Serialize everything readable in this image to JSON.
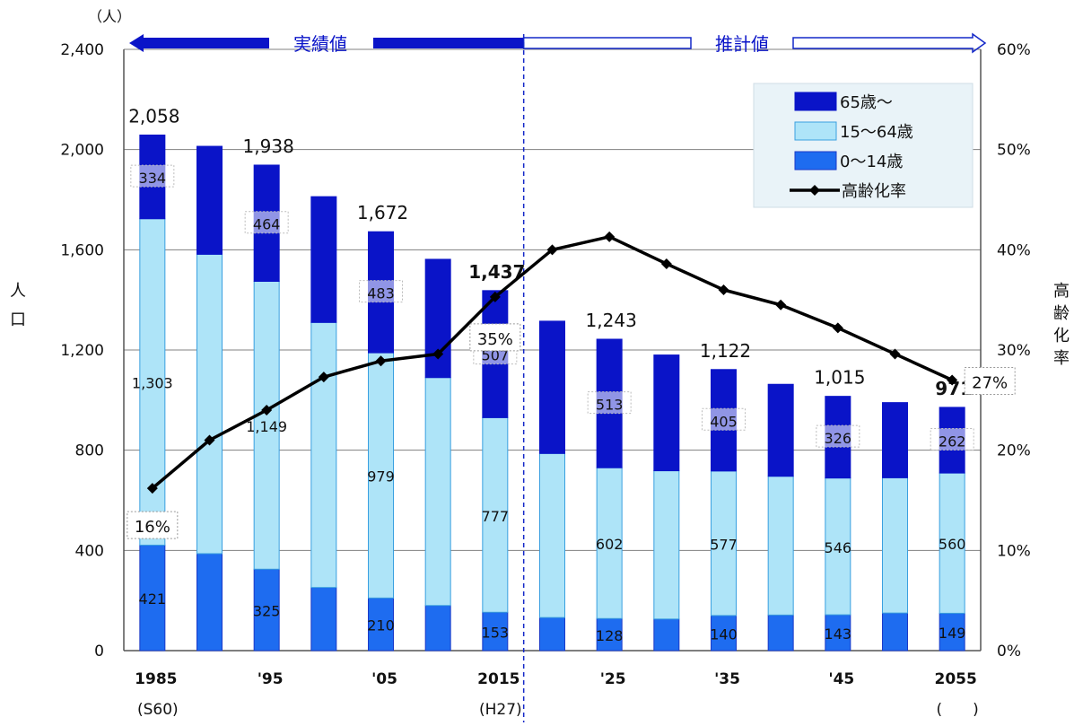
{
  "chart_data": {
    "type": "bar",
    "stacked": true,
    "unit_left": "（人）",
    "ylabel_left": "人口",
    "ylabel_right": "高齢化率",
    "ylim_left": [
      0,
      2400
    ],
    "ylim_right": [
      0,
      60
    ],
    "yticks_left": [
      "0",
      "400",
      "800",
      "1,200",
      "1,600",
      "2,000",
      "2,400"
    ],
    "yticks_right": [
      "0%",
      "10%",
      "20%",
      "30%",
      "40%",
      "50%",
      "60%"
    ],
    "grid": true,
    "legend_position": "top-right",
    "period_actual_label": "実績値",
    "period_projection_label": "推計値",
    "x_tick_labels": [
      "1985",
      "",
      "'95",
      "",
      "'05",
      "",
      "2015",
      "",
      "'25",
      "",
      "'35",
      "",
      "'45",
      "",
      "2055"
    ],
    "x_sub_labels": [
      "(S60)",
      "",
      "",
      "",
      "",
      "",
      "(H27)",
      "",
      "",
      "",
      "",
      "",
      "",
      "",
      "(　　)"
    ],
    "colors": {
      "age65": "#0a14c8",
      "age15_64": "#aee4f8",
      "age0_14": "#1e6cf0",
      "ratio_line": "#000000",
      "grid": "#808080",
      "divider": "#1428c8",
      "legend_bg": "#e9f3f8"
    },
    "series": [
      {
        "name": "65歳～",
        "values": [
          334,
          431,
          464,
          502,
          483,
          472,
          507,
          528,
          513,
          462,
          405,
          367,
          326,
          300,
          262
        ]
      },
      {
        "name": "15～64歳",
        "values": [
          1303,
          1195,
          1149,
          1058,
          979,
          910,
          777,
          655,
          602,
          592,
          577,
          554,
          546,
          540,
          560
        ]
      },
      {
        "name": "0～14歳",
        "values": [
          421,
          387,
          325,
          252,
          210,
          180,
          153,
          132,
          128,
          126,
          140,
          142,
          143,
          150,
          149
        ]
      }
    ],
    "totals": [
      2058,
      2013,
      1938,
      1812,
      1672,
      1562,
      1437,
      1315,
      1243,
      1180,
      1122,
      1063,
      1015,
      990,
      971
    ],
    "line_series": {
      "name": "高齢化率",
      "values": [
        16.2,
        21.0,
        24.0,
        27.3,
        28.9,
        29.6,
        35.3,
        40.0,
        41.3,
        38.6,
        36.0,
        34.5,
        32.2,
        29.6,
        27.0
      ]
    },
    "bar_labels": [
      {
        "index": 0,
        "series": 0,
        "text": "334"
      },
      {
        "index": 2,
        "series": 0,
        "text": "464"
      },
      {
        "index": 4,
        "series": 0,
        "text": "483"
      },
      {
        "index": 6,
        "series": 0,
        "text": "507"
      },
      {
        "index": 8,
        "series": 0,
        "text": "513"
      },
      {
        "index": 10,
        "series": 0,
        "text": "405"
      },
      {
        "index": 12,
        "series": 0,
        "text": "326"
      },
      {
        "index": 14,
        "series": 0,
        "text": "262"
      },
      {
        "index": 0,
        "series": 1,
        "text": "1,303"
      },
      {
        "index": 2,
        "series": 1,
        "text": "1,149"
      },
      {
        "index": 4,
        "series": 1,
        "text": "979"
      },
      {
        "index": 6,
        "series": 1,
        "text": "777"
      },
      {
        "index": 8,
        "series": 1,
        "text": "602"
      },
      {
        "index": 10,
        "series": 1,
        "text": "577"
      },
      {
        "index": 12,
        "series": 1,
        "text": "546"
      },
      {
        "index": 14,
        "series": 1,
        "text": "560"
      },
      {
        "index": 0,
        "series": 2,
        "text": "421"
      },
      {
        "index": 2,
        "series": 2,
        "text": "325"
      },
      {
        "index": 4,
        "series": 2,
        "text": "210"
      },
      {
        "index": 6,
        "series": 2,
        "text": "153"
      },
      {
        "index": 8,
        "series": 2,
        "text": "128"
      },
      {
        "index": 10,
        "series": 2,
        "text": "140"
      },
      {
        "index": 12,
        "series": 2,
        "text": "143"
      },
      {
        "index": 14,
        "series": 2,
        "text": "149"
      }
    ],
    "total_labels": [
      {
        "index": 0,
        "text": "2,058",
        "bold": false
      },
      {
        "index": 2,
        "text": "1,938",
        "bold": false
      },
      {
        "index": 4,
        "text": "1,672",
        "bold": false
      },
      {
        "index": 6,
        "text": "1,437",
        "bold": true
      },
      {
        "index": 8,
        "text": "1,243",
        "bold": false
      },
      {
        "index": 10,
        "text": "1,122",
        "bold": false
      },
      {
        "index": 12,
        "text": "1,015",
        "bold": false
      },
      {
        "index": 14,
        "text": "971",
        "bold": true
      }
    ],
    "ratio_labels": [
      {
        "index": 0,
        "text": "16%"
      },
      {
        "index": 6,
        "text": "35%"
      },
      {
        "index": 14,
        "text": "27%"
      }
    ]
  }
}
